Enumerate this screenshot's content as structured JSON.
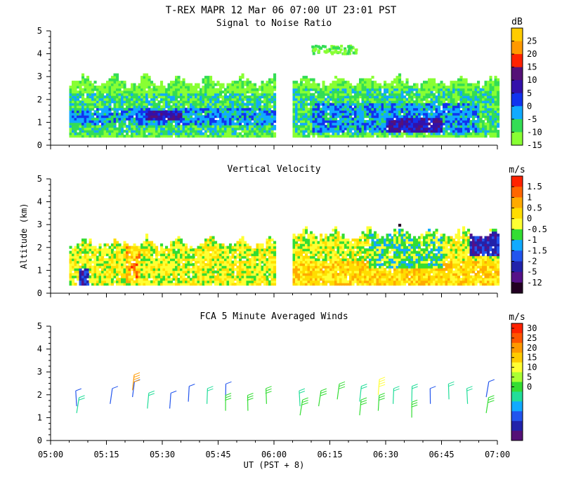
{
  "figure_title": "T-REX   MAPR 12 Mar 06   07:00 UT   23:01   PST",
  "x_axis": {
    "label": "UT  (PST + 8)",
    "range": [
      0,
      120
    ],
    "ticks": [
      0,
      15,
      30,
      45,
      60,
      75,
      90,
      105,
      120
    ],
    "tick_labels": [
      "05:00",
      "05:15",
      "05:30",
      "05:45",
      "06:00",
      "06:15",
      "06:30",
      "06:45",
      "07:00"
    ]
  },
  "y_axis": {
    "label": "Altitude (km)",
    "range": [
      0,
      5
    ],
    "ticks": [
      0,
      1,
      2,
      3,
      4,
      5
    ],
    "tick_labels": [
      "0",
      "1",
      "2",
      "3",
      "4",
      "5"
    ]
  },
  "colors": {
    "bg": "#ffffff",
    "axis": "#000000",
    "text": "#000000"
  },
  "chart_data": [
    {
      "type": "heatmap",
      "title": "Signal to Noise Ratio",
      "units": "dB",
      "xlabel": "",
      "ylabel": "",
      "colorbar_labels": [
        "25",
        "20",
        "15",
        "10",
        "5",
        "0",
        "-5",
        "-10",
        "-15"
      ],
      "colorbar_colors": [
        "#ffcc00",
        "#ff9900",
        "#ff2200",
        "#551177",
        "#3311aa",
        "#1133ee",
        "#11aaff",
        "#33dd55",
        "#88ff33"
      ],
      "data_gaps": [
        [
          60,
          65
        ]
      ],
      "regions": [
        {
          "x": [
            5,
            60
          ],
          "y": [
            0.3,
            3.2
          ],
          "level": "-15",
          "note": "background"
        },
        {
          "x": [
            5,
            60
          ],
          "y": [
            0.4,
            2.2
          ],
          "level": "-10"
        },
        {
          "x": [
            5,
            60
          ],
          "y": [
            0.8,
            1.6
          ],
          "level": "-5"
        },
        {
          "x": [
            25,
            35
          ],
          "y": [
            1.1,
            1.5
          ],
          "level": "5"
        },
        {
          "x": [
            65,
            120
          ],
          "y": [
            0.3,
            3.1
          ],
          "level": "-15"
        },
        {
          "x": [
            65,
            120
          ],
          "y": [
            0.4,
            2.4
          ],
          "level": "-10"
        },
        {
          "x": [
            70,
            115
          ],
          "y": [
            0.5,
            1.8
          ],
          "level": "-5"
        },
        {
          "x": [
            90,
            105
          ],
          "y": [
            0.5,
            1.2
          ],
          "level": "5"
        },
        {
          "x": [
            70,
            80
          ],
          "y": [
            4.1,
            4.4
          ],
          "level": "-15"
        }
      ]
    },
    {
      "type": "heatmap",
      "title": "Vertical Velocity",
      "units": "m/s",
      "xlabel": "",
      "ylabel": "Altitude (km)",
      "colorbar_labels": [
        "1.5",
        "1",
        "0.5",
        "0",
        "-0.5",
        "-1",
        "-1.5",
        "-2",
        "-5",
        "-12"
      ],
      "colorbar_colors": [
        "#ff2200",
        "#ff6600",
        "#ffaa00",
        "#ffdd00",
        "#ffff33",
        "#33dd33",
        "#11aaff",
        "#2255ee",
        "#2222aa",
        "#551188",
        "#220022"
      ],
      "data_gaps": [
        [
          60,
          65
        ]
      ],
      "regions": [
        {
          "x": [
            5,
            60
          ],
          "y": [
            0.3,
            2.5
          ],
          "level": "0"
        },
        {
          "x": [
            5,
            60
          ],
          "y": [
            0.3,
            2.5
          ],
          "level": "-0.5"
        },
        {
          "x": [
            20,
            24
          ],
          "y": [
            0.4,
            2.5
          ],
          "level": "1"
        },
        {
          "x": [
            7,
            10
          ],
          "y": [
            0.3,
            1.0
          ],
          "level": "-5"
        },
        {
          "x": [
            65,
            120
          ],
          "y": [
            0.3,
            2.9
          ],
          "level": "-0.5"
        },
        {
          "x": [
            65,
            120
          ],
          "y": [
            0.3,
            1.4
          ],
          "level": "0"
        },
        {
          "x": [
            85,
            105
          ],
          "y": [
            1.0,
            2.8
          ],
          "level": "-1"
        },
        {
          "x": [
            112,
            120
          ],
          "y": [
            1.6,
            2.7
          ],
          "level": "-5"
        }
      ]
    },
    {
      "type": "scatter",
      "subtype": "wind-barbs",
      "title": "FCA 5 Minute Averaged Winds",
      "units": "m/s",
      "xlabel": "UT  (PST + 8)",
      "ylabel": "",
      "colorbar_labels": [
        "30",
        "25",
        "20",
        "15",
        "10",
        "5",
        "0"
      ],
      "colorbar_colors": [
        "#ff2200",
        "#ff5500",
        "#ff9900",
        "#ffcc00",
        "#ffff33",
        "#aaff33",
        "#33dd33",
        "#22dd99",
        "#11aaff",
        "#2255ee",
        "#2222aa",
        "#551177"
      ],
      "barb_times": [
        7,
        16,
        22,
        26,
        32,
        37,
        42,
        47,
        53,
        58,
        67,
        72,
        77,
        83,
        88,
        92,
        97,
        102,
        107,
        112,
        117
      ],
      "barbs": [
        {
          "t": 7,
          "alt": 1.5,
          "speed": 5
        },
        {
          "t": 7,
          "alt": 1.2,
          "speed": 10
        },
        {
          "t": 16,
          "alt": 1.6,
          "speed": 5
        },
        {
          "t": 22,
          "alt": 1.9,
          "speed": 5
        },
        {
          "t": 22,
          "alt": 2.2,
          "speed": 25
        },
        {
          "t": 26,
          "alt": 1.4,
          "speed": 10
        },
        {
          "t": 32,
          "alt": 1.4,
          "speed": 5
        },
        {
          "t": 37,
          "alt": 1.7,
          "speed": 5
        },
        {
          "t": 42,
          "alt": 1.6,
          "speed": 10
        },
        {
          "t": 47,
          "alt": 1.8,
          "speed": 5
        },
        {
          "t": 47,
          "alt": 1.3,
          "speed": 15
        },
        {
          "t": 53,
          "alt": 1.3,
          "speed": 15
        },
        {
          "t": 58,
          "alt": 1.6,
          "speed": 15
        },
        {
          "t": 67,
          "alt": 1.5,
          "speed": 10
        },
        {
          "t": 67,
          "alt": 1.1,
          "speed": 15
        },
        {
          "t": 72,
          "alt": 1.5,
          "speed": 15
        },
        {
          "t": 77,
          "alt": 1.8,
          "speed": 15
        },
        {
          "t": 83,
          "alt": 1.7,
          "speed": 10
        },
        {
          "t": 83,
          "alt": 1.1,
          "speed": 15
        },
        {
          "t": 88,
          "alt": 2.0,
          "speed": 20
        },
        {
          "t": 88,
          "alt": 1.3,
          "speed": 15
        },
        {
          "t": 92,
          "alt": 1.6,
          "speed": 10
        },
        {
          "t": 97,
          "alt": 1.7,
          "speed": 10
        },
        {
          "t": 97,
          "alt": 1.0,
          "speed": 15
        },
        {
          "t": 102,
          "alt": 1.6,
          "speed": 5
        },
        {
          "t": 107,
          "alt": 1.8,
          "speed": 10
        },
        {
          "t": 112,
          "alt": 1.6,
          "speed": 10
        },
        {
          "t": 117,
          "alt": 1.9,
          "speed": 5
        },
        {
          "t": 117,
          "alt": 1.2,
          "speed": 15
        }
      ]
    }
  ]
}
